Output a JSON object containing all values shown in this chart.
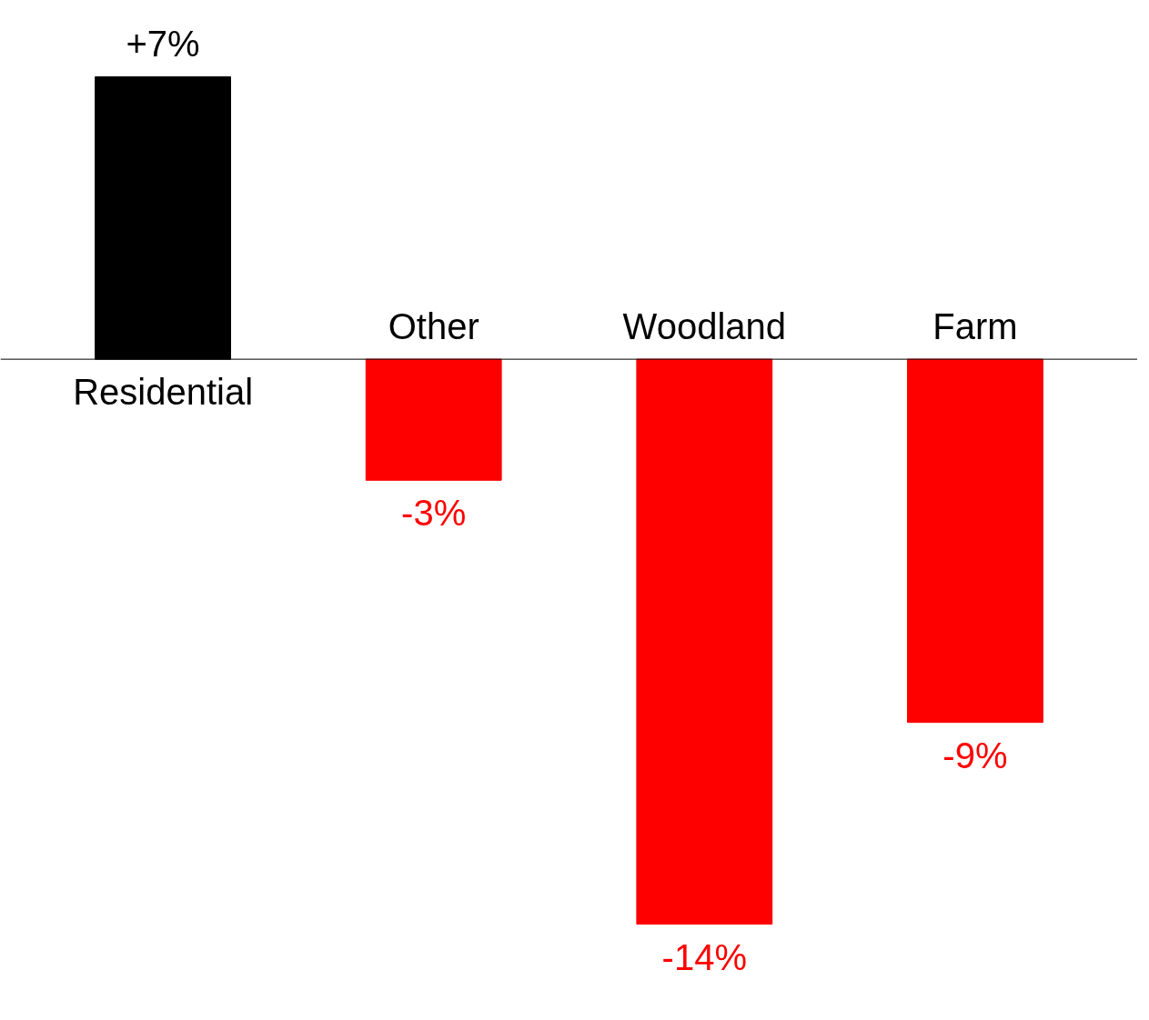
{
  "chart_data": {
    "type": "bar",
    "categories": [
      "Residential",
      "Other",
      "Woodland",
      "Farm"
    ],
    "values": [
      7,
      -3,
      -14,
      -9
    ],
    "colors": [
      "#000000",
      "#ff0000",
      "#ff0000",
      "#ff0000"
    ],
    "value_labels": [
      "+7%",
      "-3%",
      "-14%",
      "-9%"
    ]
  }
}
